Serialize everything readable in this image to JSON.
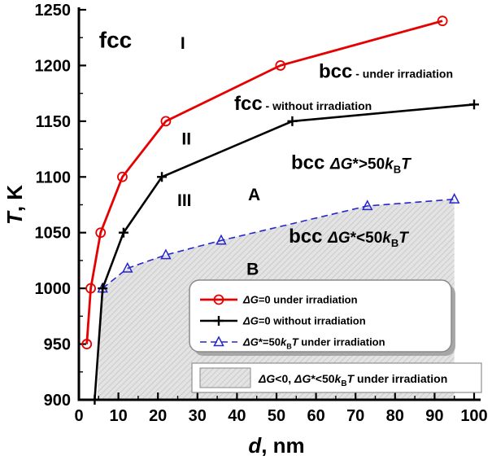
{
  "chart_data": {
    "type": "line",
    "title": "",
    "xlabel": "d, nm",
    "ylabel": "T, K",
    "xlabel_parts": [
      {
        "t": "d",
        "i": 1,
        "b": 1
      },
      {
        "t": ", nm",
        "b": 1
      }
    ],
    "ylabel_parts": [
      {
        "t": "T",
        "i": 1,
        "b": 1
      },
      {
        "t": ", K",
        "b": 1
      }
    ],
    "xlim": [
      0,
      100
    ],
    "ylim": [
      900,
      1250
    ],
    "xticks": [
      0,
      10,
      20,
      30,
      40,
      50,
      60,
      70,
      80,
      90,
      100
    ],
    "yticks": [
      900,
      950,
      1000,
      1050,
      1100,
      1150,
      1200,
      1250
    ],
    "x_minor_step": 5,
    "y_minor_step": 25,
    "grid": false,
    "series": [
      {
        "name": "ΔG=0 under irradiation",
        "color": "#e60000",
        "marker": "circle",
        "dash": null,
        "width": 2.8,
        "points": [
          [
            2,
            950
          ],
          [
            3,
            1000
          ],
          [
            5.5,
            1050
          ],
          [
            11,
            1100
          ],
          [
            22,
            1150
          ],
          [
            51,
            1200
          ],
          [
            92,
            1240
          ]
        ]
      },
      {
        "name": "ΔG=0 without irradiation",
        "color": "#000000",
        "marker": "plus",
        "dash": null,
        "width": 2.6,
        "points": [
          [
            4,
            900
          ],
          [
            6,
            1000
          ],
          [
            11.3,
            1050
          ],
          [
            21,
            1100
          ],
          [
            54,
            1150
          ],
          [
            100,
            1165
          ]
        ]
      },
      {
        "name": "ΔG*=50kBT under irradiation",
        "color": "#2727cd",
        "marker": "triangle",
        "dash": "8 5",
        "width": 1.6,
        "points": [
          [
            6,
            1000
          ],
          [
            12.3,
            1018
          ],
          [
            22,
            1030
          ],
          [
            36,
            1043
          ],
          [
            73,
            1074
          ],
          [
            95,
            1080
          ]
        ]
      }
    ],
    "shaded_region": {
      "label": "ΔG<0, ΔG*<50kBT under irradiation",
      "fill_bg": "#e3e3e3",
      "hatch_color": "#c4c4c4",
      "outline": [
        [
          4.6,
          900
        ],
        [
          5.3,
          960
        ],
        [
          6,
          1000
        ],
        [
          12.3,
          1018
        ],
        [
          22,
          1030
        ],
        [
          36,
          1043
        ],
        [
          73,
          1074
        ],
        [
          95,
          1080
        ],
        [
          95,
          900
        ]
      ]
    },
    "annotations": [
      {
        "x": 5.1,
        "y": 1216,
        "parts": [
          {
            "t": "fcc",
            "s": 28,
            "b": 1
          }
        ]
      },
      {
        "x": 25.7,
        "y": 1215,
        "parts": [
          {
            "t": "I",
            "s": 21,
            "b": 1
          }
        ]
      },
      {
        "x": 60.7,
        "y": 1189,
        "parts": [
          {
            "t": "bcc",
            "s": 24,
            "b": 1
          },
          {
            "t": " - under irradiation",
            "s": 14,
            "b": 1
          }
        ]
      },
      {
        "x": 39.3,
        "y": 1160,
        "parts": [
          {
            "t": "fcc",
            "s": 24,
            "b": 1
          },
          {
            "t": " - without irradiation",
            "s": 14,
            "b": 1
          }
        ]
      },
      {
        "x": 26.0,
        "y": 1129,
        "parts": [
          {
            "t": "II",
            "s": 21,
            "b": 1
          }
        ]
      },
      {
        "x": 53.7,
        "y": 1107,
        "parts": [
          {
            "t": "bcc ",
            "s": 24,
            "b": 1
          },
          {
            "t": "ΔG",
            "s": 19,
            "b": 1,
            "i": 1
          },
          {
            "t": "*>50",
            "s": 19,
            "b": 1
          },
          {
            "t": "k",
            "s": 19,
            "b": 1,
            "i": 1
          },
          {
            "t": "B",
            "s": 13,
            "b": 1,
            "sub": 1
          },
          {
            "t": "T",
            "s": 19,
            "b": 1,
            "i": 1
          }
        ]
      },
      {
        "x": 24.9,
        "y": 1074,
        "parts": [
          {
            "t": "III",
            "s": 21,
            "b": 1
          }
        ]
      },
      {
        "x": 42.8,
        "y": 1079,
        "parts": [
          {
            "t": "A",
            "s": 21,
            "b": 1
          }
        ]
      },
      {
        "x": 53.1,
        "y": 1041,
        "parts": [
          {
            "t": "bcc ",
            "s": 24,
            "b": 1
          },
          {
            "t": "ΔG",
            "s": 19,
            "b": 1,
            "i": 1
          },
          {
            "t": "*<50",
            "s": 19,
            "b": 1
          },
          {
            "t": "k",
            "s": 19,
            "b": 1,
            "i": 1
          },
          {
            "t": "B",
            "s": 13,
            "b": 1,
            "sub": 1
          },
          {
            "t": "T",
            "s": 19,
            "b": 1,
            "i": 1
          }
        ]
      },
      {
        "x": 42.4,
        "y": 1012,
        "parts": [
          {
            "t": "B",
            "s": 21,
            "b": 1
          }
        ]
      }
    ],
    "legend": {
      "position": "inside-bottom-right",
      "text_size": 13,
      "entries": [
        {
          "series": 0,
          "label": "ΔG=0 under irradiation",
          "parts": [
            {
              "t": "ΔG",
              "i": 1
            },
            {
              "t": "=0 under irradiation"
            }
          ]
        },
        {
          "series": 1,
          "label": "ΔG=0 without irradiation",
          "parts": [
            {
              "t": "ΔG",
              "i": 1
            },
            {
              "t": "=0 without irradiation"
            }
          ]
        },
        {
          "series": 2,
          "label": "ΔG*=50kBT under irradiation",
          "parts": [
            {
              "t": "ΔG",
              "i": 1
            },
            {
              "t": "*=50"
            },
            {
              "t": "k",
              "i": 1
            },
            {
              "t": "B",
              "sub": 1
            },
            {
              "t": "T",
              "i": 1
            },
            {
              "t": " under irradiation"
            }
          ]
        }
      ]
    },
    "shaded_legend": {
      "text_size": 14,
      "label": "ΔG<0,  ΔG*<50kBT under irradiation",
      "parts": [
        {
          "t": "ΔG",
          "i": 1
        },
        {
          "t": "<0,  "
        },
        {
          "t": "ΔG",
          "i": 1
        },
        {
          "t": "*<50"
        },
        {
          "t": "k",
          "i": 1
        },
        {
          "t": "B",
          "sub": 1
        },
        {
          "t": "T",
          "i": 1
        },
        {
          "t": " under irradiation"
        }
      ]
    }
  }
}
